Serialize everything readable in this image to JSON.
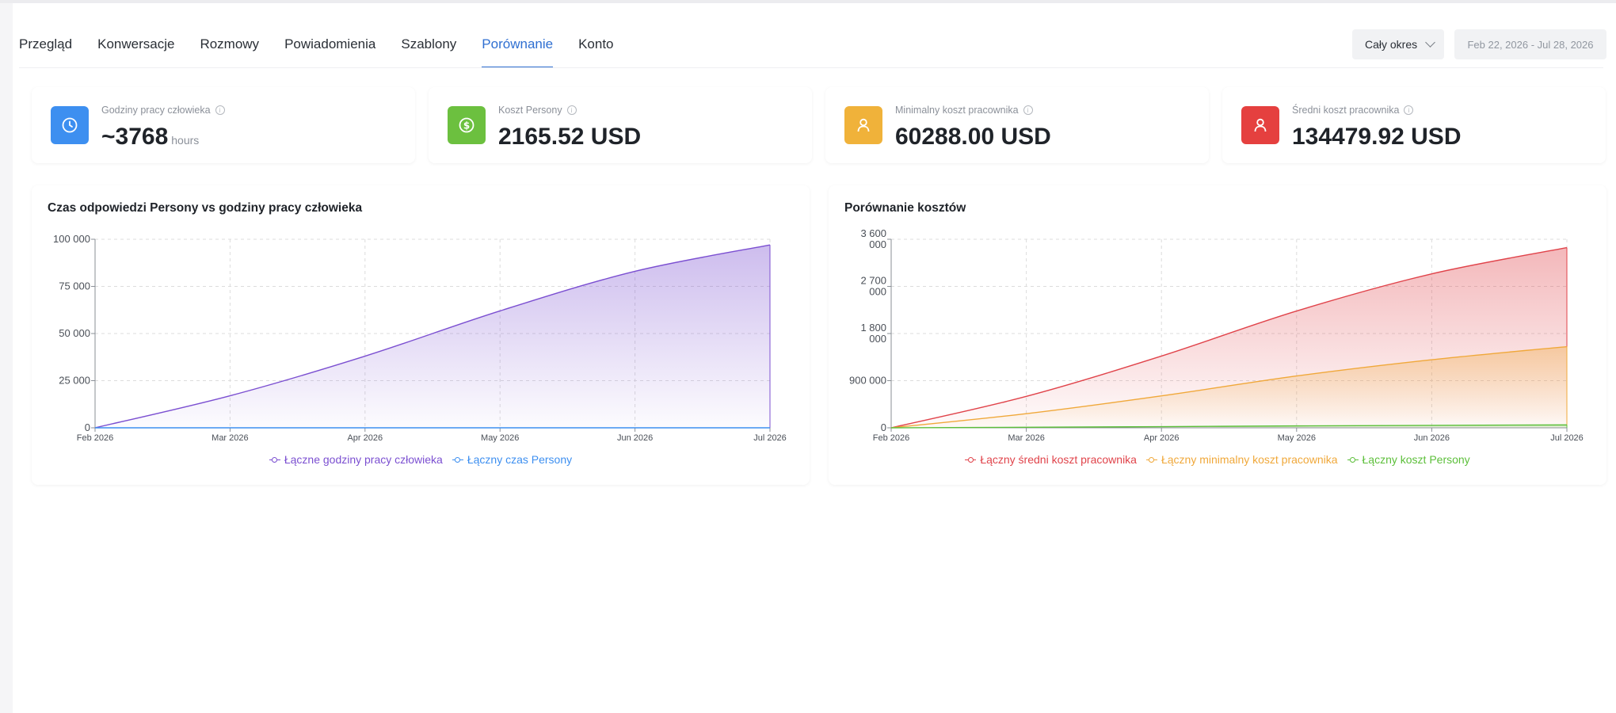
{
  "tabs": [
    {
      "label": "Przegląd",
      "active": false
    },
    {
      "label": "Konwersacje",
      "active": false
    },
    {
      "label": "Rozmowy",
      "active": false
    },
    {
      "label": "Powiadomienia",
      "active": false
    },
    {
      "label": "Szablony",
      "active": false
    },
    {
      "label": "Porównanie",
      "active": true
    },
    {
      "label": "Konto",
      "active": false
    }
  ],
  "filters": {
    "period_label": "Cały okres",
    "date_range": "Feb 22, 2026 - Jul 28, 2026"
  },
  "kpis": [
    {
      "label": "Godziny pracy człowieka",
      "value": "~3768",
      "unit": "hours",
      "icon": "clock-icon",
      "color": "#3d8ff0"
    },
    {
      "label": "Koszt Persony",
      "value": "2165.52 USD",
      "unit": "",
      "icon": "dollar-icon",
      "color": "#6cc03f"
    },
    {
      "label": "Minimalny koszt pracownika",
      "value": "60288.00 USD",
      "unit": "",
      "icon": "user-icon",
      "color": "#f0b23a"
    },
    {
      "label": "Średni koszt pracownika",
      "value": "134479.92 USD",
      "unit": "",
      "icon": "user-icon",
      "color": "#e5403f"
    }
  ],
  "chart_data": [
    {
      "type": "area",
      "title": "Czas odpowiedzi Persony vs godziny pracy człowieka",
      "x": [
        "Feb 2026",
        "Mar 2026",
        "Apr 2026",
        "May 2026",
        "Jun 2026",
        "Jul 2026"
      ],
      "y_ticks": [
        "0",
        "25 000",
        "50 000",
        "75 000",
        "100 000"
      ],
      "ylim": [
        0,
        100000
      ],
      "grid": true,
      "legend_position": "bottom",
      "series": [
        {
          "name": "Łączne godziny pracy człowieka",
          "color": "#7b4fd1",
          "values": [
            0,
            17000,
            38000,
            62000,
            83000,
            97000
          ]
        },
        {
          "name": "Łączny czas Persony",
          "color": "#3d8ff0",
          "values": [
            0,
            0,
            0,
            0,
            0,
            0
          ]
        }
      ]
    },
    {
      "type": "area",
      "title": "Porównanie kosztów",
      "x": [
        "Feb 2026",
        "Mar 2026",
        "Apr 2026",
        "May 2026",
        "Jun 2026",
        "Jul 2026"
      ],
      "y_ticks": [
        "0",
        "900 000",
        "1 800\n000",
        "2 700\n000",
        "3 600\n000"
      ],
      "ylim": [
        0,
        3600000
      ],
      "grid": true,
      "legend_position": "bottom",
      "series": [
        {
          "name": "Łączny średni koszt pracownika",
          "color": "#e0434a",
          "values": [
            0,
            600000,
            1370000,
            2230000,
            2940000,
            3440000
          ]
        },
        {
          "name": "Łączny minimalny koszt pracownika",
          "color": "#f0a83a",
          "values": [
            0,
            270000,
            610000,
            990000,
            1300000,
            1550000
          ]
        },
        {
          "name": "Łączny koszt Persony",
          "color": "#5cbf3a",
          "values": [
            0,
            10000,
            22000,
            36000,
            47000,
            55000
          ]
        }
      ]
    }
  ]
}
